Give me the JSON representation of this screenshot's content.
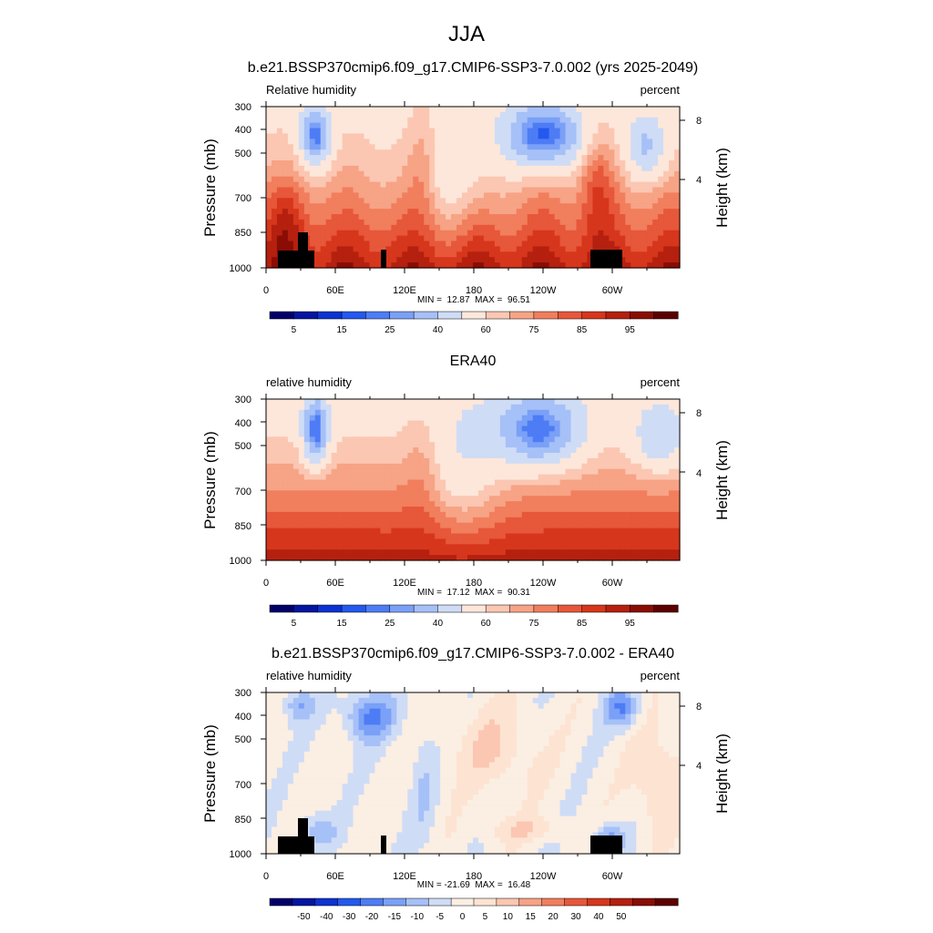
{
  "figure": {
    "title": "JJA"
  },
  "colorbar_colors_rh": [
    "#03006a",
    "#0416a0",
    "#0c32d0",
    "#2458ee",
    "#4d7cf5",
    "#7aa0f7",
    "#a6c0f8",
    "#cfdcf6",
    "#fde7da",
    "#fbc7b2",
    "#f7a385",
    "#f17e5d",
    "#e7573a",
    "#d6361c",
    "#b5200f",
    "#8a0d04",
    "#5c0000"
  ],
  "colorbar_colors_diff": [
    "#03006a",
    "#0416a0",
    "#0c32d0",
    "#2458ee",
    "#4d7cf5",
    "#7aa0f7",
    "#a6c0f8",
    "#cfdcf6",
    "#fbeee2",
    "#fde3d2",
    "#fbc7b2",
    "#f7a385",
    "#f17e5d",
    "#e7573a",
    "#d6361c",
    "#b5200f",
    "#8a0d04",
    "#5c0000"
  ],
  "chart_data": [
    {
      "type": "heatmap",
      "title": "b.e21.BSSP370cmip6.f09_g17.CMIP6-SSP3-7.0.002 (yrs 2025-2049)",
      "left_label": "Relative humidity",
      "right_label": "percent",
      "ylabel": "Pressure (mb)",
      "y2label": "Height (km)",
      "yticks": [
        "300",
        "400",
        "500",
        "700",
        "850",
        "1000"
      ],
      "y2ticks": [
        "8",
        "4"
      ],
      "xticks": [
        "0",
        "60E",
        "120E",
        "180",
        "120W",
        "60W"
      ],
      "stats": "MIN =  12.87  MAX =  96.51",
      "min": 12.87,
      "max": 96.51,
      "colorbar_labels": [
        "5",
        "15",
        "25",
        "40",
        "60",
        "75",
        "85",
        "95"
      ],
      "terrain": true
    },
    {
      "type": "heatmap",
      "title": "ERA40",
      "left_label": "relative humidity",
      "right_label": "percent",
      "ylabel": "Pressure (mb)",
      "y2label": "Height (km)",
      "yticks": [
        "300",
        "400",
        "500",
        "700",
        "850",
        "1000"
      ],
      "y2ticks": [
        "8",
        "4"
      ],
      "xticks": [
        "0",
        "60E",
        "120E",
        "180",
        "120W",
        "60W"
      ],
      "stats": "MIN =  17.12  MAX =  90.31",
      "min": 17.12,
      "max": 90.31,
      "colorbar_labels": [
        "5",
        "15",
        "25",
        "40",
        "60",
        "75",
        "85",
        "95"
      ],
      "terrain": false
    },
    {
      "type": "heatmap",
      "title": "b.e21.BSSP370cmip6.f09_g17.CMIP6-SSP3-7.0.002 - ERA40",
      "left_label": "relative humidity",
      "right_label": "percent",
      "ylabel": "Pressure (mb)",
      "y2label": "Height (km)",
      "yticks": [
        "300",
        "400",
        "500",
        "700",
        "850",
        "1000"
      ],
      "y2ticks": [
        "8",
        "4"
      ],
      "xticks": [
        "0",
        "60E",
        "120E",
        "180",
        "120W",
        "60W"
      ],
      "stats": "MIN = -21.69  MAX =  16.48",
      "min": -21.69,
      "max": 16.48,
      "colorbar_labels": [
        "-50",
        "-40",
        "-30",
        "-20",
        "-15",
        "-10",
        "-5",
        "0",
        "5",
        "10",
        "15",
        "20",
        "30",
        "40",
        "50"
      ],
      "terrain": true
    }
  ]
}
